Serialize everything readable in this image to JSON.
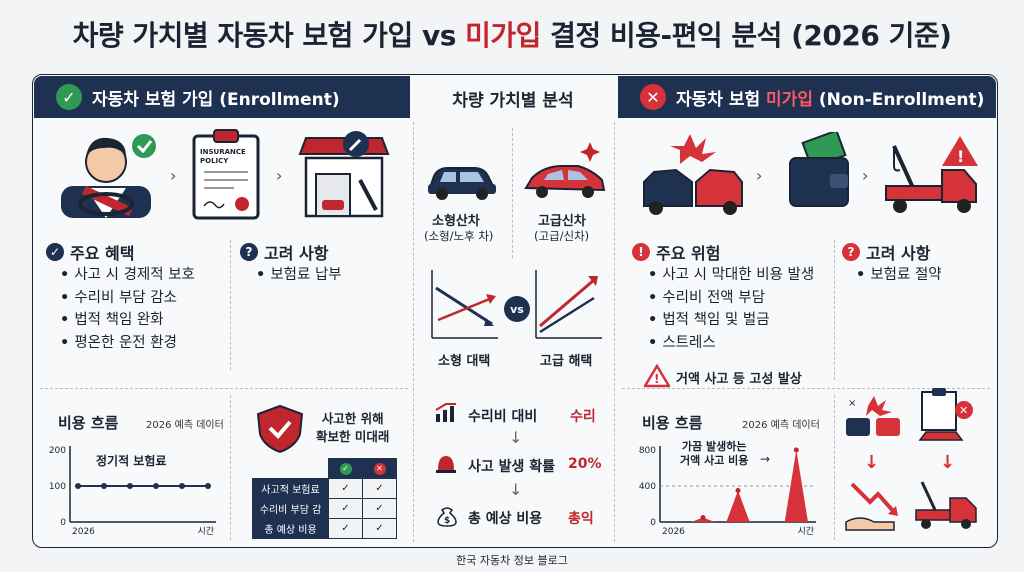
{
  "title": {
    "part1": "차량 가치별 자동차 보험 가입 vs ",
    "highlight": "미가입",
    "part2": " 결정 비용-편익 분석 (2026 기준)"
  },
  "colors": {
    "navy": "#1e3150",
    "red": "#c0262d",
    "green": "#2e9a55"
  },
  "left": {
    "header": "자동차 보험 가입 (Enrollment)",
    "header_icon": "check-circle-icon",
    "policy_doc_text": [
      "INSURANCE",
      "POLICY"
    ],
    "benefits_title": "주요 혜택",
    "benefits": [
      "사고 시 경제적 보호",
      "수리비 부담 감소",
      "법적 책임 완화",
      "평온한 운전 환경"
    ],
    "consider_title": "고려 사항",
    "consider": [
      "보험료 납부"
    ],
    "cost_title": "비용 흐름",
    "cost_note": "2026 예측 데이터",
    "chart_label": "정기적 보험료",
    "shield_text": [
      "사고한 위해",
      "확보한 미대래"
    ],
    "table_rows": [
      "사고적 보험료",
      "수리비 부담 감",
      "총 예상 비용"
    ]
  },
  "middle": {
    "title": "차량 가치별 분석",
    "small_car": "소형산차",
    "small_car_sub": "(소형/노후 차)",
    "big_car": "고급신차",
    "big_car_sub": "(고급/신차)",
    "vs": "vs",
    "small_label": "소형 대택",
    "big_label": "고급 해택",
    "rows": [
      {
        "label": "수리비 대비",
        "value": "수리"
      },
      {
        "label": "사고 발생 확률",
        "value": "20%"
      },
      {
        "label": "총 예상 비용",
        "value": "총익"
      }
    ],
    "down_arrow": "↓"
  },
  "right": {
    "header_pre": "자동차 보험 ",
    "header_red": "미가입",
    "header_post": " (Non-Enrollment)",
    "header_icon": "x-circle-icon",
    "risks_title": "주요 위험",
    "risks": [
      "사고 시 막대한 비용 발생",
      "수리비 전액 부담",
      "법적 책임 및 벌금",
      "스트레스"
    ],
    "consider_title": "고려 사항",
    "consider": [
      "보험료 절약"
    ],
    "warning": "거액 사고 등 고성 발상",
    "cost_title": "비용 흐름",
    "cost_note": "2026 예측 데이터",
    "annotation": [
      "가끔 발생하는",
      "거액 사고 비용"
    ]
  },
  "footer": "한국 자동차 정보 블로그",
  "chart_data": [
    {
      "type": "line",
      "title": "비용 흐름",
      "xlabel": "시간",
      "x_start": "2026",
      "yticks": [
        0,
        100,
        200
      ],
      "ylim": [
        0,
        200
      ],
      "series": [
        {
          "name": "정기적 보험료",
          "values": [
            100,
            100,
            100,
            100,
            100,
            100
          ]
        }
      ]
    },
    {
      "type": "line",
      "title": "비용 흐름",
      "xlabel": "시간",
      "x_start": "2026",
      "yticks": [
        0,
        400,
        800
      ],
      "ylim": [
        0,
        800
      ],
      "reference_line": 400,
      "series": [
        {
          "name": "거액 사고 비용",
          "values": [
            0,
            0,
            0,
            50,
            0,
            0,
            350,
            0,
            0,
            0,
            0,
            800,
            0
          ]
        }
      ]
    }
  ]
}
